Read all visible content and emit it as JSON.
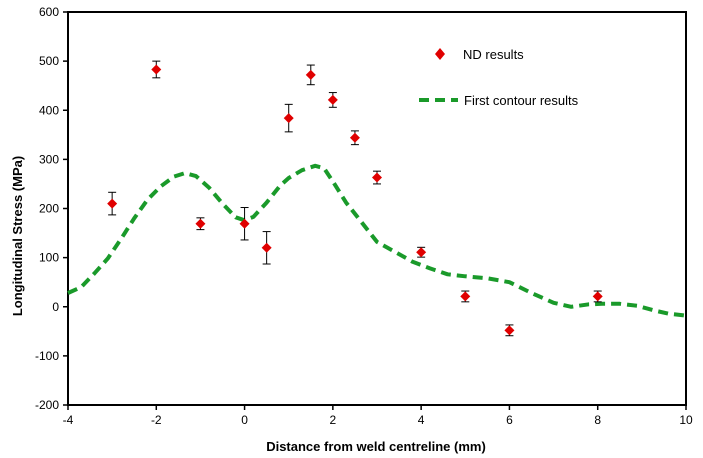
{
  "chart_data": {
    "type": "scatter",
    "title": "",
    "xlabel": "Distance from weld centreline (mm)",
    "ylabel": "Longitudinal Stress (MPa)",
    "xlim": [
      -4,
      10
    ],
    "ylim": [
      -200,
      600
    ],
    "x_ticks": [
      "-4",
      "-2",
      "0",
      "2",
      "4",
      "6",
      "8",
      "10"
    ],
    "y_ticks": [
      "-200",
      "-100",
      "0",
      "100",
      "200",
      "300",
      "400",
      "500",
      "600"
    ],
    "grid": false,
    "legend_position": "top-right",
    "colors": {
      "nd": "#e00000",
      "contour": "#1a9a2a",
      "error_bar": "#000000"
    },
    "series": [
      {
        "name": "ND results",
        "type": "scatter",
        "marker": "diamond",
        "points": [
          {
            "x": -3,
            "y": 210,
            "err": 23
          },
          {
            "x": -2,
            "y": 483,
            "err": 17
          },
          {
            "x": -1,
            "y": 169,
            "err": 12
          },
          {
            "x": 0,
            "y": 169,
            "err": 33
          },
          {
            "x": 0.5,
            "y": 120,
            "err": 33
          },
          {
            "x": 1,
            "y": 384,
            "err": 28
          },
          {
            "x": 1.5,
            "y": 472,
            "err": 20
          },
          {
            "x": 2,
            "y": 421,
            "err": 15
          },
          {
            "x": 2.5,
            "y": 344,
            "err": 14
          },
          {
            "x": 3,
            "y": 263,
            "err": 13
          },
          {
            "x": 4,
            "y": 111,
            "err": 10
          },
          {
            "x": 5,
            "y": 21,
            "err": 11
          },
          {
            "x": 6,
            "y": -48,
            "err": 11
          },
          {
            "x": 8,
            "y": 21,
            "err": 11
          }
        ]
      },
      {
        "name": "First contour results",
        "type": "line",
        "style": "dashed",
        "points": [
          {
            "x": -4,
            "y": 28
          },
          {
            "x": -3.7,
            "y": 40
          },
          {
            "x": -3.4,
            "y": 68
          },
          {
            "x": -3.1,
            "y": 98
          },
          {
            "x": -2.8,
            "y": 138
          },
          {
            "x": -2.5,
            "y": 180
          },
          {
            "x": -2.2,
            "y": 218
          },
          {
            "x": -1.9,
            "y": 245
          },
          {
            "x": -1.6,
            "y": 265
          },
          {
            "x": -1.35,
            "y": 272
          },
          {
            "x": -1.1,
            "y": 266
          },
          {
            "x": -0.8,
            "y": 242
          },
          {
            "x": -0.5,
            "y": 210
          },
          {
            "x": -0.2,
            "y": 182
          },
          {
            "x": 0,
            "y": 176
          },
          {
            "x": 0.2,
            "y": 183
          },
          {
            "x": 0.5,
            "y": 212
          },
          {
            "x": 0.8,
            "y": 246
          },
          {
            "x": 1.0,
            "y": 262
          },
          {
            "x": 1.3,
            "y": 278
          },
          {
            "x": 1.6,
            "y": 287
          },
          {
            "x": 1.8,
            "y": 282
          },
          {
            "x": 2.0,
            "y": 255
          },
          {
            "x": 2.3,
            "y": 212
          },
          {
            "x": 2.6,
            "y": 178
          },
          {
            "x": 3.0,
            "y": 132
          },
          {
            "x": 3.4,
            "y": 112
          },
          {
            "x": 3.8,
            "y": 92
          },
          {
            "x": 4.2,
            "y": 78
          },
          {
            "x": 4.6,
            "y": 66
          },
          {
            "x": 5.0,
            "y": 62
          },
          {
            "x": 5.5,
            "y": 58
          },
          {
            "x": 6.0,
            "y": 50
          },
          {
            "x": 6.5,
            "y": 28
          },
          {
            "x": 7.0,
            "y": 8
          },
          {
            "x": 7.4,
            "y": 0
          },
          {
            "x": 7.8,
            "y": 5
          },
          {
            "x": 8.1,
            "y": 6
          },
          {
            "x": 8.5,
            "y": 6
          },
          {
            "x": 8.9,
            "y": 2
          },
          {
            "x": 9.3,
            "y": -8
          },
          {
            "x": 9.6,
            "y": -14
          },
          {
            "x": 10,
            "y": -18
          }
        ]
      }
    ]
  }
}
